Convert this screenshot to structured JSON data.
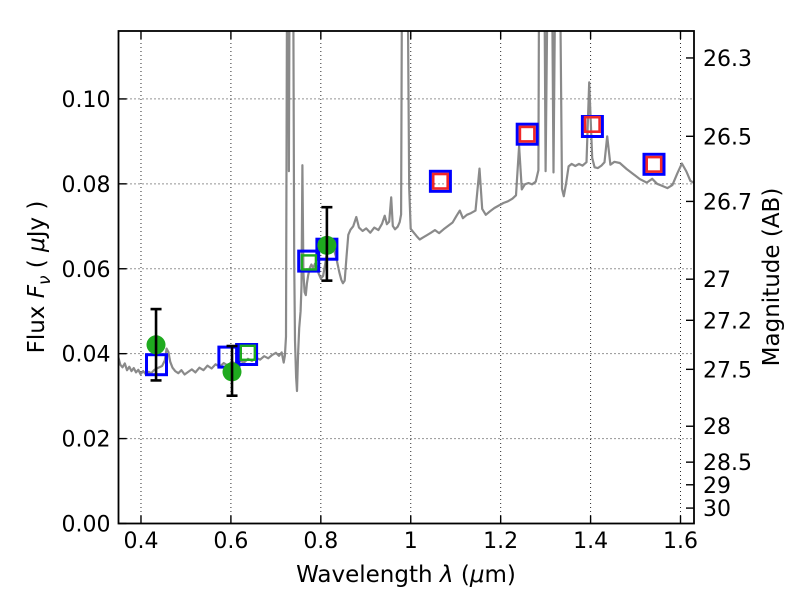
{
  "chart_data": {
    "type": "line",
    "title": "",
    "xlabel_text": "Wavelength  λ (μm)",
    "xlabel_parts": [
      {
        "t": "Wavelength  ",
        "i": false
      },
      {
        "t": "λ",
        "i": true
      },
      {
        "t": " (",
        "i": false
      },
      {
        "t": "μ",
        "i": true
      },
      {
        "t": "m)",
        "i": false
      }
    ],
    "ylabel_left_text": "Flux  Fν  ( μJy )",
    "ylabel_left_parts": [
      {
        "t": "Flux  ",
        "i": false
      },
      {
        "t": "F",
        "i": true
      },
      {
        "t": "ν",
        "i": true,
        "sub": true
      },
      {
        "t": "  ( ",
        "i": false
      },
      {
        "t": "μ",
        "i": true
      },
      {
        "t": "Jy )",
        "i": false
      }
    ],
    "ylabel_right_text": "Magnitude (AB)",
    "ylabel_right_parts": [
      {
        "t": "Magnitude (AB)",
        "i": false
      }
    ],
    "xlim": [
      0.35,
      1.63
    ],
    "ylim": [
      0,
      0.116
    ],
    "grid": "dotted at major ticks, both directions",
    "legend": "none",
    "x_axis": {
      "ticks": [
        {
          "v": 0.4,
          "label": "0.4"
        },
        {
          "v": 0.6,
          "label": "0.6"
        },
        {
          "v": 0.8,
          "label": "0.8"
        },
        {
          "v": 1.0,
          "label": "1"
        },
        {
          "v": 1.2,
          "label": "1.2"
        },
        {
          "v": 1.4,
          "label": "1.4"
        },
        {
          "v": 1.6,
          "label": "1.6"
        }
      ]
    },
    "y_axis_left": {
      "ticks": [
        {
          "v": 0.0,
          "label": "0.00"
        },
        {
          "v": 0.02,
          "label": "0.02"
        },
        {
          "v": 0.04,
          "label": "0.04"
        },
        {
          "v": 0.06,
          "label": "0.06"
        },
        {
          "v": 0.08,
          "label": "0.08"
        },
        {
          "v": 0.1,
          "label": "0.10"
        }
      ]
    },
    "y_axis_right": {
      "ticks": [
        {
          "label": "26.3",
          "flux": 0.10965
        },
        {
          "label": "26.5",
          "flux": 0.0912
        },
        {
          "label": "26.7",
          "flux": 0.07586
        },
        {
          "label": "27",
          "flux": 0.05754
        },
        {
          "label": "27.2",
          "flux": 0.04786
        },
        {
          "label": "27.5",
          "flux": 0.03631
        },
        {
          "label": "28",
          "flux": 0.02291
        },
        {
          "label": "28.5",
          "flux": 0.01445
        },
        {
          "label": "29",
          "flux": 0.00912
        },
        {
          "label": "30",
          "flux": 0.00363
        }
      ]
    },
    "colors": {
      "spectrum": "#8a8a8a",
      "blue_square": "#0000ff",
      "green_marker": "#1faa1f",
      "red_square": "#f02828",
      "errorbar": "#000000",
      "grid": "#2a2a2a",
      "spine": "#000000"
    },
    "series": [
      {
        "id": "model_spectrum",
        "name": "model spectrum line",
        "type": "line",
        "color": "#8a8a8a",
        "width": 2.2,
        "points": [
          [
            0.35,
            0.039
          ],
          [
            0.354,
            0.0374
          ],
          [
            0.359,
            0.0368
          ],
          [
            0.364,
            0.0377
          ],
          [
            0.369,
            0.0361
          ],
          [
            0.374,
            0.0369
          ],
          [
            0.379,
            0.0359
          ],
          [
            0.384,
            0.0366
          ],
          [
            0.389,
            0.0356
          ],
          [
            0.394,
            0.0362
          ],
          [
            0.399,
            0.0352
          ],
          [
            0.405,
            0.0359
          ],
          [
            0.411,
            0.0351
          ],
          [
            0.417,
            0.0357
          ],
          [
            0.423,
            0.0354
          ],
          [
            0.429,
            0.0361
          ],
          [
            0.435,
            0.0365
          ],
          [
            0.441,
            0.0368
          ],
          [
            0.447,
            0.0371
          ],
          [
            0.453,
            0.0384
          ],
          [
            0.457,
            0.0412
          ],
          [
            0.461,
            0.0404
          ],
          [
            0.465,
            0.0381
          ],
          [
            0.47,
            0.0367
          ],
          [
            0.476,
            0.0359
          ],
          [
            0.483,
            0.0354
          ],
          [
            0.49,
            0.0361
          ],
          [
            0.497,
            0.0351
          ],
          [
            0.505,
            0.0357
          ],
          [
            0.513,
            0.0363
          ],
          [
            0.521,
            0.0356
          ],
          [
            0.53,
            0.0367
          ],
          [
            0.539,
            0.0361
          ],
          [
            0.548,
            0.0372
          ],
          [
            0.557,
            0.0365
          ],
          [
            0.566,
            0.0375
          ],
          [
            0.575,
            0.0369
          ],
          [
            0.584,
            0.0378
          ],
          [
            0.593,
            0.0372
          ],
          [
            0.602,
            0.0381
          ],
          [
            0.611,
            0.0376
          ],
          [
            0.62,
            0.0384
          ],
          [
            0.629,
            0.0379
          ],
          [
            0.638,
            0.0388
          ],
          [
            0.647,
            0.0383
          ],
          [
            0.656,
            0.039
          ],
          [
            0.665,
            0.0386
          ],
          [
            0.674,
            0.0394
          ],
          [
            0.683,
            0.0389
          ],
          [
            0.692,
            0.0397
          ],
          [
            0.7,
            0.0402
          ],
          [
            0.707,
            0.0395
          ],
          [
            0.713,
            0.0403
          ],
          [
            0.7175,
            0.0379
          ],
          [
            0.72,
            0.0396
          ],
          [
            0.7225,
            0.044
          ],
          [
            0.7245,
            0.1175
          ],
          [
            0.728,
            0.1175
          ],
          [
            0.729,
            0.083
          ],
          [
            0.7302,
            0.1175
          ],
          [
            0.739,
            0.1175
          ],
          [
            0.7408,
            0.062
          ],
          [
            0.7425,
            0.043
          ],
          [
            0.745,
            0.0345
          ],
          [
            0.747,
            0.0312
          ],
          [
            0.7495,
            0.04
          ],
          [
            0.752,
            0.046
          ],
          [
            0.755,
            0.05
          ],
          [
            0.757,
            0.056
          ],
          [
            0.759,
            0.0844
          ],
          [
            0.7612,
            0.059
          ],
          [
            0.764,
            0.0545
          ],
          [
            0.7665,
            0.0538
          ],
          [
            0.769,
            0.0565
          ],
          [
            0.772,
            0.0585
          ],
          [
            0.7755,
            0.0602
          ],
          [
            0.779,
            0.061
          ],
          [
            0.783,
            0.0601
          ],
          [
            0.787,
            0.0612
          ],
          [
            0.791,
            0.0605
          ],
          [
            0.795,
            0.0589
          ],
          [
            0.8,
            0.0577
          ],
          [
            0.805,
            0.0583
          ],
          [
            0.8095,
            0.061
          ],
          [
            0.814,
            0.0642
          ],
          [
            0.8185,
            0.0658
          ],
          [
            0.823,
            0.0652
          ],
          [
            0.829,
            0.0646
          ],
          [
            0.835,
            0.0622
          ],
          [
            0.841,
            0.0592
          ],
          [
            0.8455,
            0.0574
          ],
          [
            0.849,
            0.0566
          ],
          [
            0.853,
            0.0572
          ],
          [
            0.857,
            0.0628
          ],
          [
            0.861,
            0.068
          ],
          [
            0.866,
            0.0692
          ],
          [
            0.872,
            0.07
          ],
          [
            0.879,
            0.0722
          ],
          [
            0.885,
            0.0697
          ],
          [
            0.893,
            0.0689
          ],
          [
            0.901,
            0.0695
          ],
          [
            0.91,
            0.0685
          ],
          [
            0.919,
            0.0697
          ],
          [
            0.928,
            0.0691
          ],
          [
            0.936,
            0.0706
          ],
          [
            0.942,
            0.0725
          ],
          [
            0.947,
            0.0705
          ],
          [
            0.952,
            0.0711
          ],
          [
            0.9565,
            0.0768
          ],
          [
            0.96,
            0.0701
          ],
          [
            0.965,
            0.0693
          ],
          [
            0.971,
            0.0699
          ],
          [
            0.9755,
            0.071
          ],
          [
            0.9785,
            0.0728
          ],
          [
            0.98,
            0.1175
          ],
          [
            0.994,
            0.1175
          ],
          [
            0.9965,
            0.079
          ],
          [
            1.0,
            0.0694
          ],
          [
            1.006,
            0.0686
          ],
          [
            1.013,
            0.0677
          ],
          [
            1.02,
            0.0669
          ],
          [
            1.028,
            0.0674
          ],
          [
            1.036,
            0.0679
          ],
          [
            1.045,
            0.0685
          ],
          [
            1.054,
            0.0691
          ],
          [
            1.063,
            0.0684
          ],
          [
            1.073,
            0.0693
          ],
          [
            1.083,
            0.0701
          ],
          [
            1.093,
            0.0709
          ],
          [
            1.102,
            0.0725
          ],
          [
            1.109,
            0.0737
          ],
          [
            1.116,
            0.0719
          ],
          [
            1.125,
            0.0727
          ],
          [
            1.134,
            0.0731
          ],
          [
            1.144,
            0.0737
          ],
          [
            1.153,
            0.0836
          ],
          [
            1.159,
            0.0741
          ],
          [
            1.167,
            0.0727
          ],
          [
            1.176,
            0.0735
          ],
          [
            1.186,
            0.0743
          ],
          [
            1.196,
            0.0749
          ],
          [
            1.206,
            0.0755
          ],
          [
            1.216,
            0.0759
          ],
          [
            1.226,
            0.0765
          ],
          [
            1.234,
            0.0773
          ],
          [
            1.241,
            0.0889
          ],
          [
            1.247,
            0.0787
          ],
          [
            1.254,
            0.0799
          ],
          [
            1.262,
            0.0802
          ],
          [
            1.27,
            0.0799
          ],
          [
            1.278,
            0.0805
          ],
          [
            1.284,
            0.0832
          ],
          [
            1.285,
            0.1175
          ],
          [
            1.298,
            0.1175
          ],
          [
            1.3,
            0.083
          ],
          [
            1.3032,
            0.1175
          ],
          [
            1.315,
            0.1175
          ],
          [
            1.3175,
            0.0827
          ],
          [
            1.3205,
            0.1175
          ],
          [
            1.333,
            0.1175
          ],
          [
            1.3365,
            0.0788
          ],
          [
            1.3405,
            0.0771
          ],
          [
            1.3455,
            0.0801
          ],
          [
            1.351,
            0.0841
          ],
          [
            1.358,
            0.0847
          ],
          [
            1.366,
            0.0842
          ],
          [
            1.374,
            0.0847
          ],
          [
            1.382,
            0.0843
          ],
          [
            1.391,
            0.0851
          ],
          [
            1.397,
            0.1039
          ],
          [
            1.4035,
            0.0861
          ],
          [
            1.409,
            0.0839
          ],
          [
            1.416,
            0.0837
          ],
          [
            1.424,
            0.0843
          ],
          [
            1.431,
            0.0851
          ],
          [
            1.437,
            0.0912
          ],
          [
            1.444,
            0.0845
          ],
          [
            1.453,
            0.0852
          ],
          [
            1.465,
            0.0849
          ],
          [
            1.48,
            0.0835
          ],
          [
            1.495,
            0.0823
          ],
          [
            1.51,
            0.0811
          ],
          [
            1.525,
            0.0803
          ],
          [
            1.537,
            0.0812
          ],
          [
            1.548,
            0.08
          ],
          [
            1.56,
            0.0795
          ],
          [
            1.571,
            0.079
          ],
          [
            1.582,
            0.0797
          ],
          [
            1.593,
            0.0825
          ],
          [
            1.603,
            0.0848
          ],
          [
            1.613,
            0.0829
          ],
          [
            1.622,
            0.0807
          ],
          [
            1.629,
            0.0803
          ]
        ]
      },
      {
        "id": "blue_squares",
        "name": "photometry blue open squares",
        "type": "scatter",
        "marker": "square-open",
        "color": "#0000ff",
        "size": 20,
        "stroke": 3,
        "points": [
          [
            0.4345,
            0.0374
          ],
          [
            0.5955,
            0.0392
          ],
          [
            0.635,
            0.0398
          ],
          [
            0.773,
            0.0618
          ],
          [
            0.8135,
            0.0646
          ],
          [
            1.066,
            0.0806
          ],
          [
            1.259,
            0.0917
          ],
          [
            1.404,
            0.0935
          ],
          [
            1.541,
            0.0846
          ]
        ]
      },
      {
        "id": "green_squares",
        "name": "photometry green open squares",
        "type": "scatter",
        "marker": "square-open",
        "color": "#1faa1f",
        "size": 14,
        "stroke": 2.4,
        "points": [
          [
            0.6375,
            0.0402
          ],
          [
            0.7735,
            0.0615
          ]
        ]
      },
      {
        "id": "red_squares",
        "name": "photometry red open squares",
        "type": "scatter",
        "marker": "square-open",
        "color": "#f02828",
        "size": 14.5,
        "stroke": 2.6,
        "points": [
          [
            1.066,
            0.0806
          ],
          [
            1.259,
            0.0917
          ],
          [
            1.404,
            0.094
          ],
          [
            1.541,
            0.0846
          ]
        ]
      },
      {
        "id": "observed_circles",
        "name": "observed photometry green circles with error bars",
        "type": "scatter",
        "marker": "circle-filled",
        "color": "#1faa1f",
        "size": 19,
        "errorbar_color": "#000000",
        "points": [
          {
            "x": 0.4335,
            "y": 0.0421,
            "lo": 0.0337,
            "hi": 0.0505
          },
          {
            "x": 0.6025,
            "y": 0.0357,
            "lo": 0.0301,
            "hi": 0.0418
          },
          {
            "x": 0.8135,
            "y": 0.0655,
            "lo": 0.0572,
            "hi": 0.0745
          }
        ]
      }
    ]
  }
}
